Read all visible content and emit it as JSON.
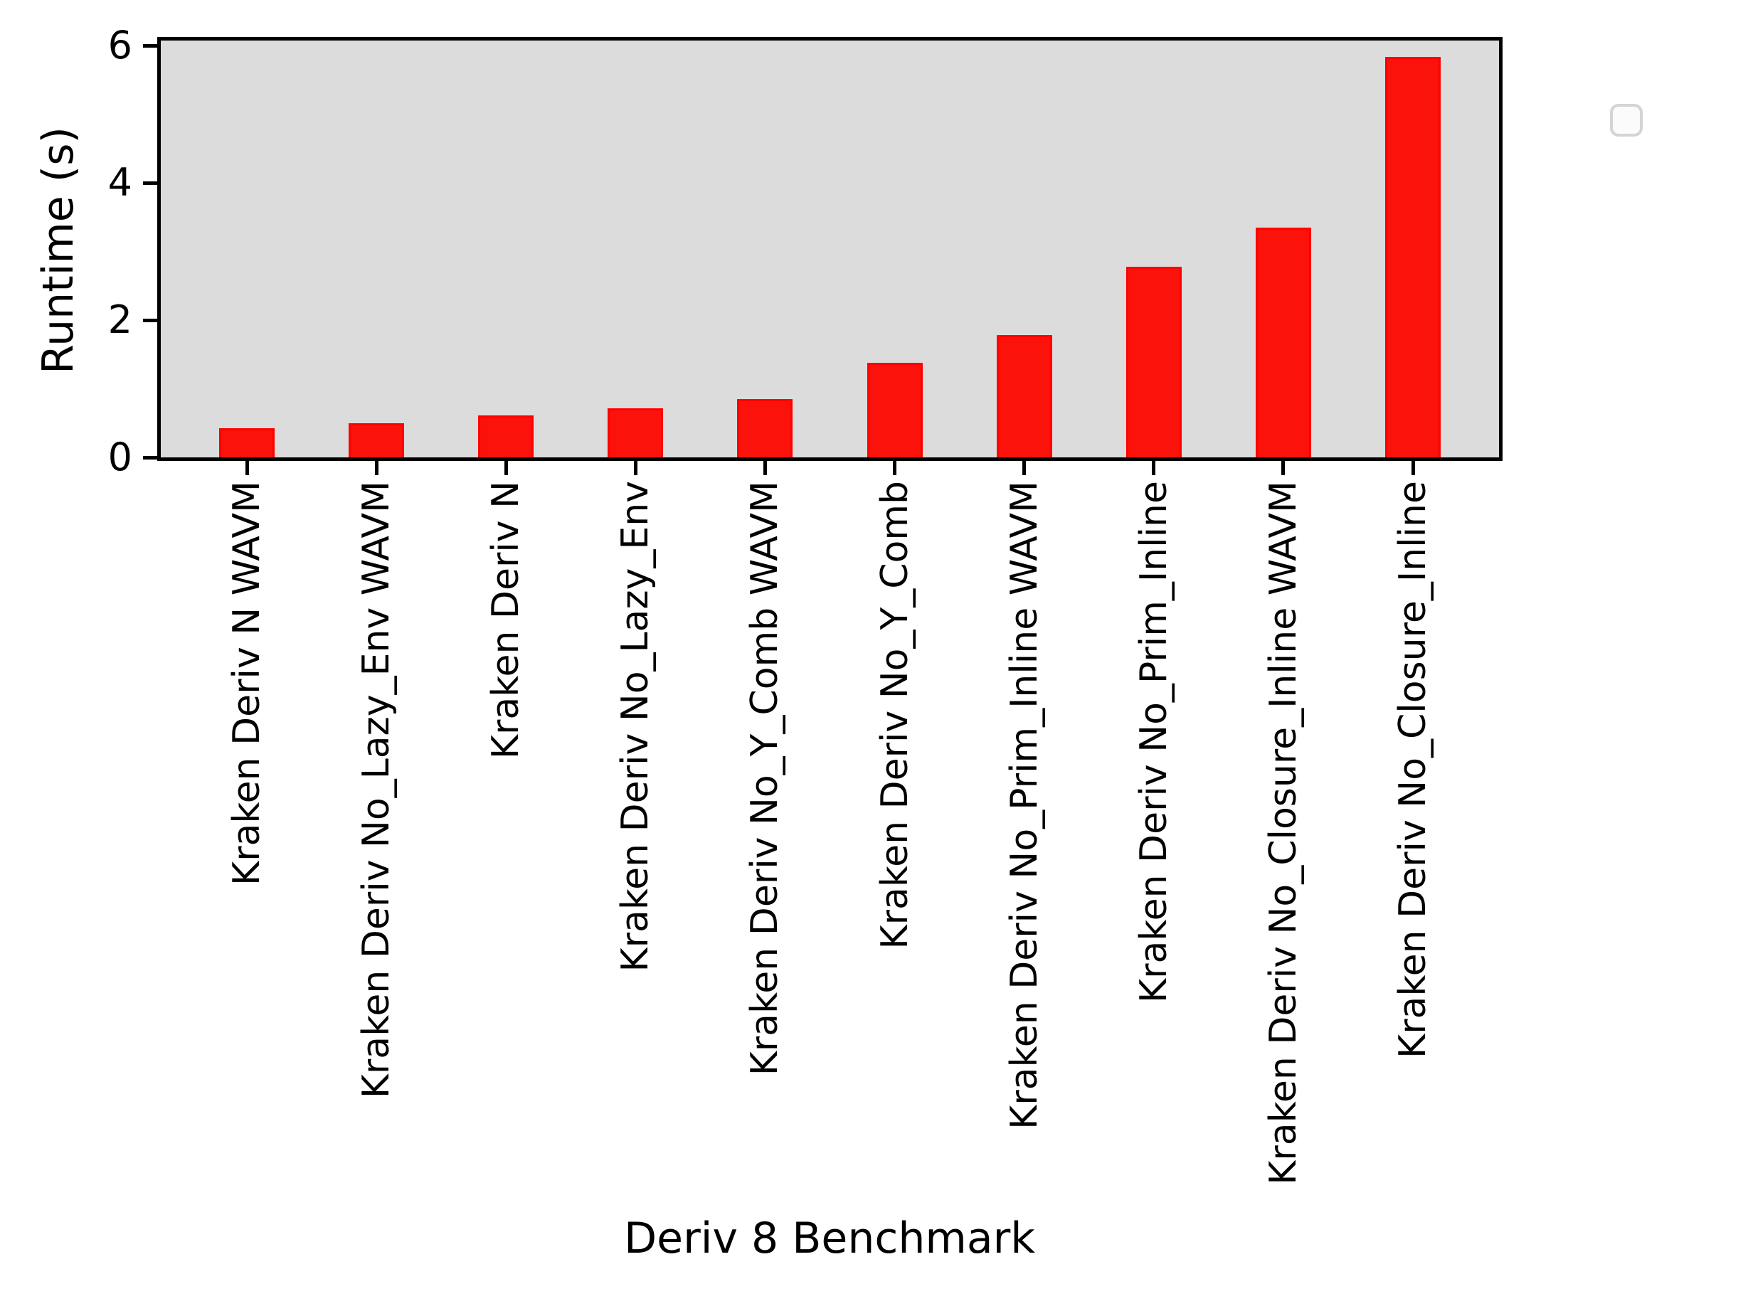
{
  "figure": {
    "background": "#ffffff",
    "plot_background": "#dcdcdc",
    "axis_color": "#000000",
    "bar_fill_color": "#fa120b",
    "bar_edge_color": "#ff0000",
    "legend": {
      "present": true,
      "entries": [],
      "fill": "#fbfbfb",
      "border": "#d4d4d4",
      "position": "upper right"
    }
  },
  "chart_data": {
    "type": "bar",
    "title": "",
    "xlabel": "Deriv 8 Benchmark",
    "ylabel": "Runtime (s)",
    "categories": [
      "Kraken Deriv N WAVM",
      "Kraken Deriv No_Lazy_Env WAVM",
      "Kraken Deriv N",
      "Kraken Deriv No_Lazy_Env",
      "Kraken Deriv No_Y_Comb WAVM",
      "Kraken Deriv No_Y_Comb",
      "Kraken Deriv No_Prim_Inline WAVM",
      "Kraken Deriv No_Prim_Inline",
      "Kraken Deriv No_Closure_Inline WAVM",
      "Kraken Deriv No_Closure_Inline"
    ],
    "values": [
      0.43,
      0.5,
      0.61,
      0.71,
      0.85,
      1.38,
      1.78,
      2.78,
      3.35,
      5.83
    ],
    "yticks": [
      0,
      2,
      4,
      6
    ],
    "ylim": [
      0,
      6.07
    ],
    "grid": false,
    "bar_color": "#ff0000",
    "legend_position": "upper right",
    "legend_entries": []
  }
}
